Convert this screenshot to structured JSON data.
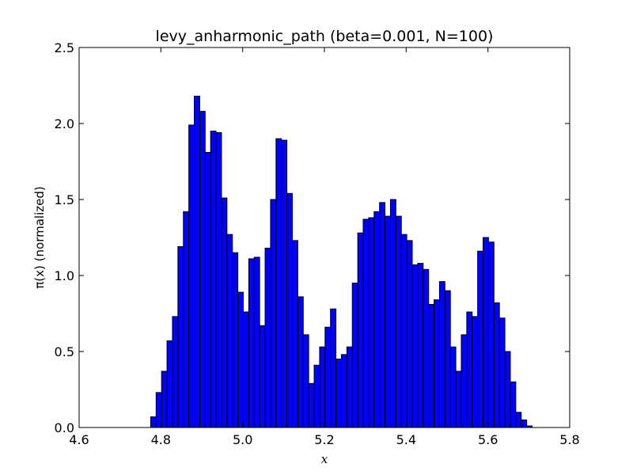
{
  "chart_data": {
    "type": "bar",
    "title": "levy_anharmonic_path (beta=0.001, N=100)",
    "xlabel": "x",
    "ylabel": "π(x) (normalized)",
    "xlim": [
      4.6,
      5.8
    ],
    "ylim": [
      0,
      2.5
    ],
    "xticks": [
      "4.6",
      "4.8",
      "5.0",
      "5.2",
      "5.4",
      "5.6",
      "5.8"
    ],
    "yticks": [
      "0.0",
      "0.5",
      "1.0",
      "1.5",
      "2.0",
      "2.5"
    ],
    "grid": false,
    "bar_color": "#0000ff",
    "bins": {
      "start": 4.775,
      "width": 0.01333,
      "values": [
        0.07,
        0.23,
        0.37,
        0.57,
        0.73,
        1.19,
        1.42,
        1.99,
        2.18,
        2.08,
        1.81,
        1.95,
        1.94,
        1.51,
        1.27,
        1.15,
        0.89,
        0.76,
        1.11,
        1.12,
        0.67,
        1.18,
        1.5,
        1.9,
        1.89,
        1.54,
        1.23,
        0.86,
        0.61,
        0.29,
        0.41,
        0.53,
        0.66,
        0.78,
        0.45,
        0.48,
        0.53,
        0.95,
        1.28,
        1.37,
        1.38,
        1.42,
        1.48,
        1.39,
        1.5,
        1.39,
        1.27,
        1.23,
        1.07,
        1.08,
        1.04,
        0.81,
        0.84,
        0.96,
        0.9,
        0.53,
        0.37,
        0.61,
        0.76,
        0.73,
        1.16,
        1.25,
        1.22,
        0.82,
        0.72,
        0.5,
        0.3,
        0.1,
        0.05,
        0.01
      ]
    }
  }
}
